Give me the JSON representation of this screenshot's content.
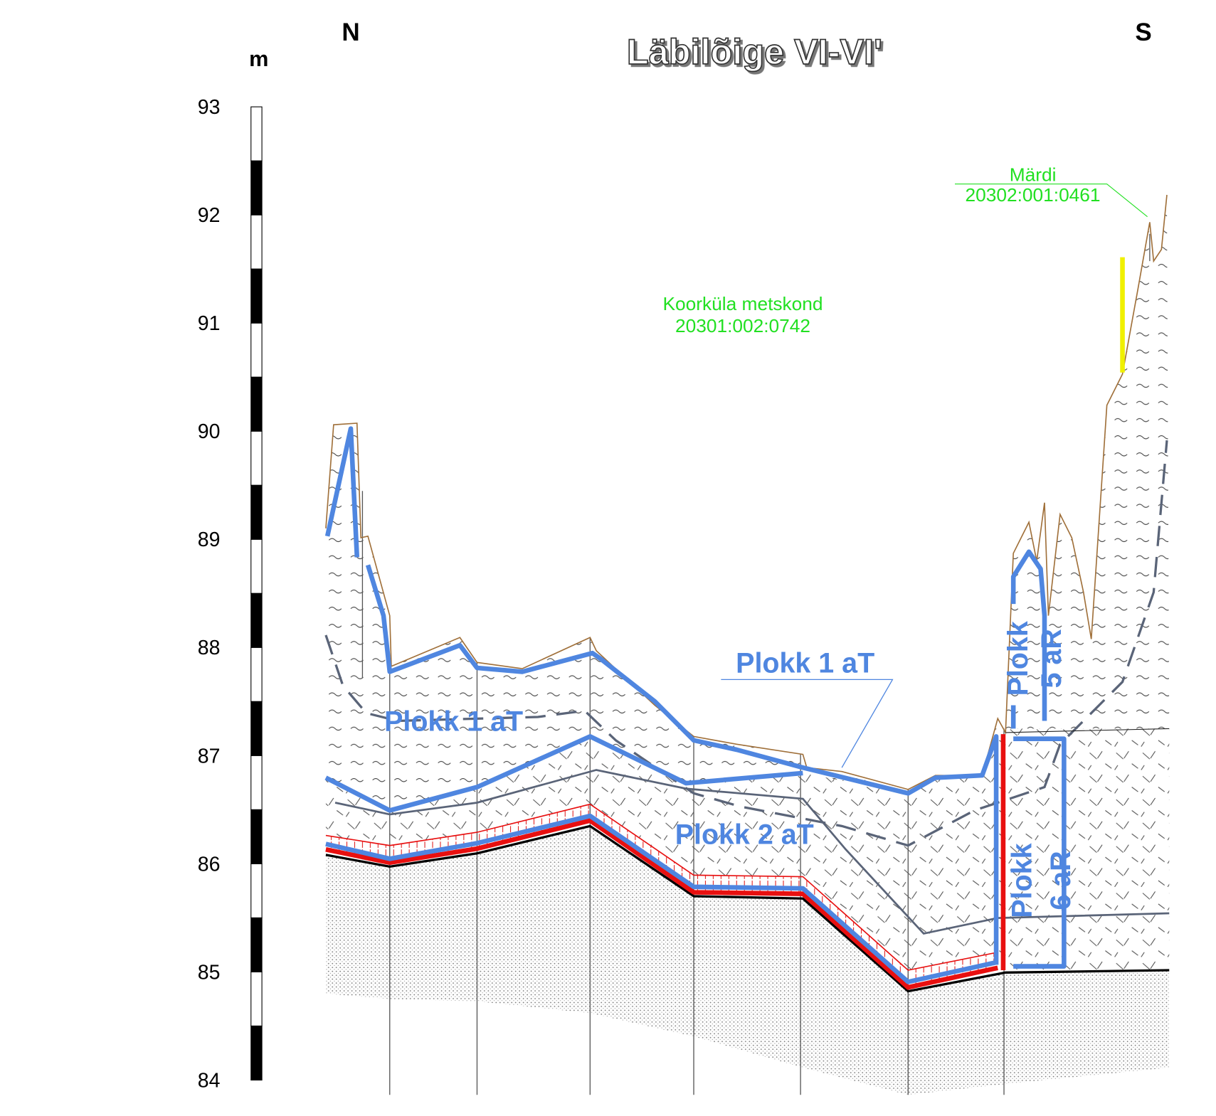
{
  "title": "Läbilõige VI-VI'",
  "directions": {
    "left": "N",
    "right": "S"
  },
  "scale": {
    "unit": "m",
    "labels": [
      93,
      92,
      91,
      90,
      89,
      88,
      87,
      86,
      85,
      84
    ]
  },
  "parcels": [
    {
      "name": "Koorküla metskond",
      "code": "20301:002:0742"
    },
    {
      "name": "Märdi",
      "code": "20302:001:0461"
    }
  ],
  "blocks": {
    "plokk_1_right": "Plokk 1 aT",
    "plokk_1_left": "Plokk 1 aT",
    "plokk_2": "Plokk 2 aT",
    "plokk_5": [
      "Plokk",
      "5 aR"
    ],
    "plokk_6": [
      "Plokk",
      "6 aR"
    ]
  }
}
